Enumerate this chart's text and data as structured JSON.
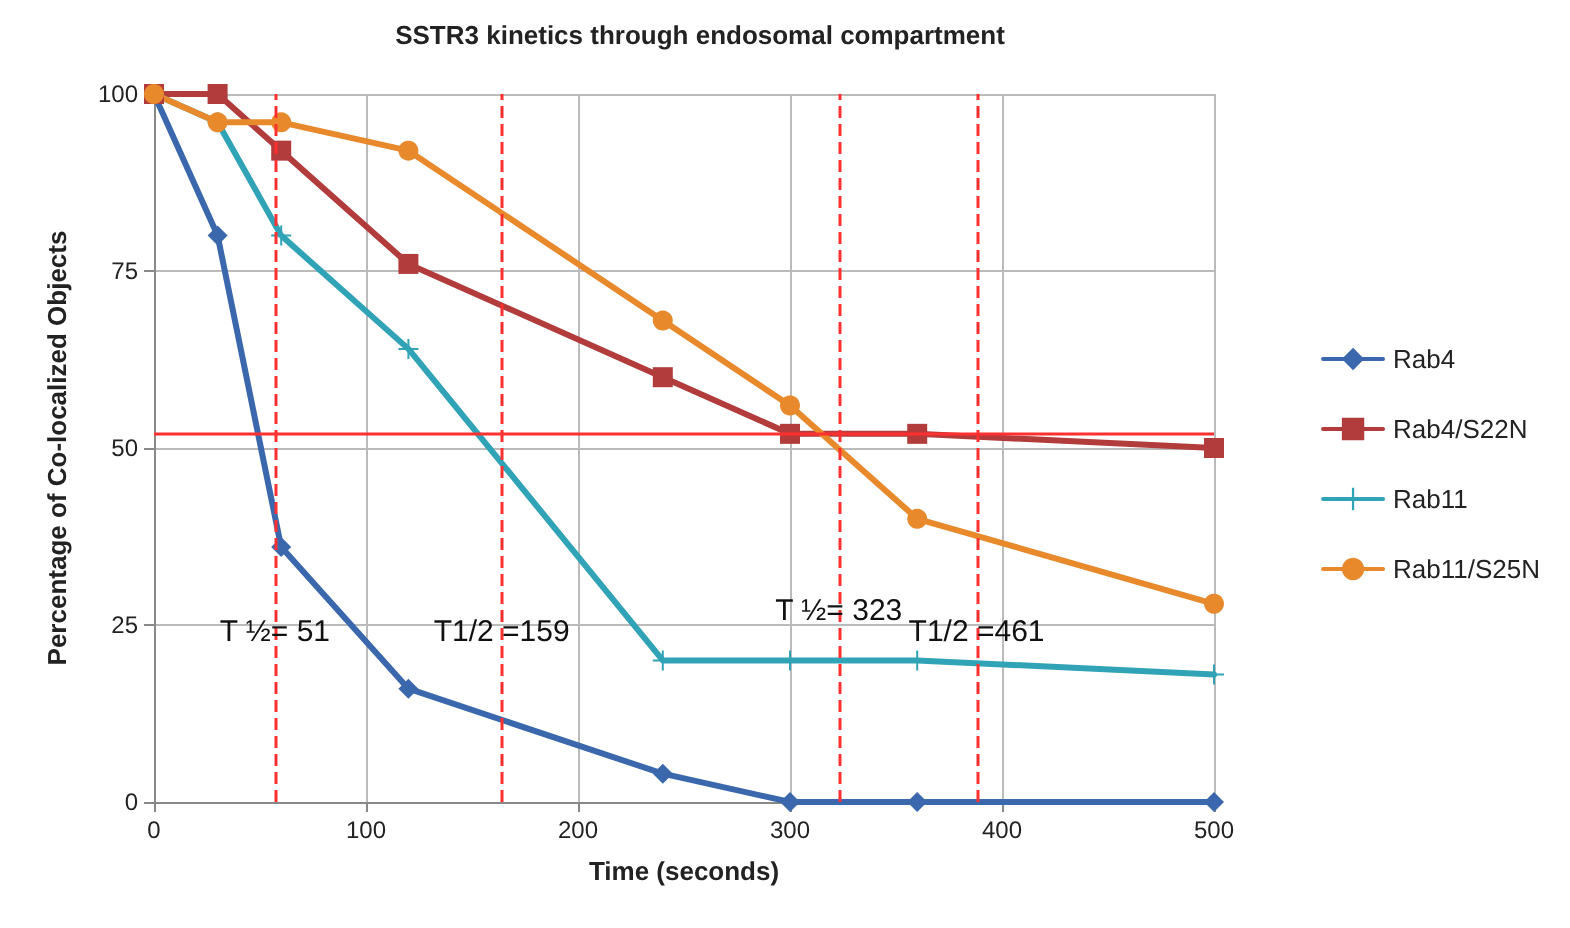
{
  "chart_data": {
    "type": "line",
    "title": "SSTR3 kinetics through endosomal compartment",
    "xlabel": "Time (seconds)",
    "ylabel": "Percentage of Co-localized Objects",
    "x": [
      0,
      30,
      60,
      120,
      240,
      300,
      360,
      500
    ],
    "series": [
      {
        "name": "Rab4",
        "color": "#3b67ad",
        "marker": "diamond",
        "values": [
          100,
          80,
          36,
          16,
          4,
          0,
          0,
          0
        ]
      },
      {
        "name": "Rab4/S22N",
        "color": "#b23b3b",
        "marker": "square",
        "values": [
          100,
          100,
          92,
          76,
          60,
          52,
          52,
          50
        ]
      },
      {
        "name": "Rab11",
        "color": "#31a3b6",
        "marker": "cross",
        "values": [
          100,
          96,
          80,
          64,
          20,
          20,
          20,
          18
        ]
      },
      {
        "name": "Rab11/S25N",
        "color": "#e8892c",
        "marker": "circle",
        "values": [
          100,
          96,
          96,
          92,
          68,
          56,
          40,
          28
        ]
      }
    ],
    "xlim": [
      0,
      500
    ],
    "xticks": [
      0,
      100,
      200,
      300,
      400,
      500
    ],
    "ylim": [
      0,
      100
    ],
    "yticks": [
      0,
      25,
      50,
      75,
      100
    ],
    "grid": true,
    "legend": "right",
    "ref_lines": [
      {
        "axis": "y",
        "value": 52,
        "color": "#ff3030",
        "line_style": "solid"
      },
      {
        "axis": "x",
        "value": 57,
        "color": "#ff3030",
        "line_style": "dashed"
      },
      {
        "axis": "x",
        "value": 164,
        "color": "#ff3030",
        "line_style": "dashed"
      },
      {
        "axis": "x",
        "value": 323,
        "color": "#ff3030",
        "line_style": "dashed"
      },
      {
        "axis": "x",
        "value": 388,
        "color": "#ff3030",
        "line_style": "dashed"
      }
    ],
    "annotations": [
      {
        "text": "T ½= 51",
        "x": 57,
        "y": 24
      },
      {
        "text": "T1/2 =159",
        "x": 164,
        "y": 24
      },
      {
        "text": "T ½= 323",
        "x": 323,
        "y": 27
      },
      {
        "text": "T1/2 =461",
        "x": 388,
        "y": 24
      }
    ]
  }
}
